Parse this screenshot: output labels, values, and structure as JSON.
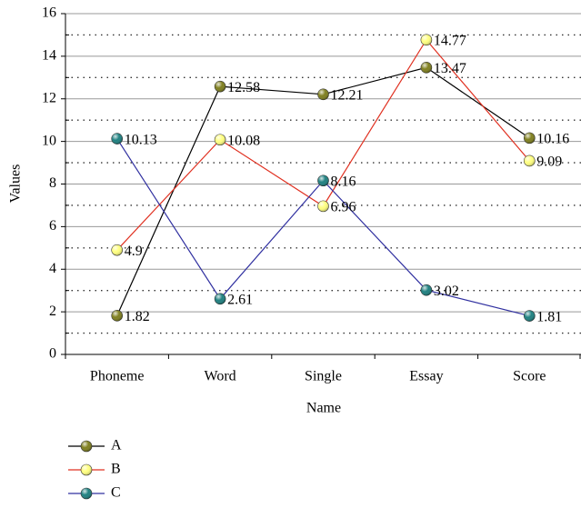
{
  "chart_data": {
    "type": "line",
    "xlabel": "Name",
    "ylabel": "Values",
    "categories": [
      "Phoneme",
      "Word",
      "Single",
      "Essay",
      "Score"
    ],
    "series": [
      {
        "name": "A",
        "color": "#7f7f1f",
        "line_color": "#000000",
        "values": [
          1.82,
          12.58,
          12.21,
          13.47,
          10.16
        ]
      },
      {
        "name": "B",
        "color": "#ffff80",
        "line_color": "#e03020",
        "values": [
          4.9,
          10.08,
          6.96,
          14.77,
          9.09
        ]
      },
      {
        "name": "C",
        "color": "#1f8080",
        "line_color": "#3030a0",
        "values": [
          10.13,
          2.61,
          8.16,
          3.02,
          1.81
        ]
      }
    ],
    "ylim": [
      0,
      16
    ],
    "yticks": [
      0,
      2,
      4,
      6,
      8,
      10,
      12,
      14,
      16
    ],
    "minor_yticks": [
      1,
      3,
      5,
      7,
      9,
      11,
      13,
      15
    ],
    "grid": true,
    "data_labels": true,
    "legend": "bottom-left"
  }
}
